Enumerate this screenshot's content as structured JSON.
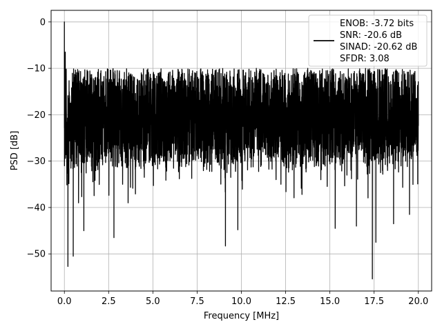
{
  "chart_data": {
    "type": "line",
    "title": "",
    "xlabel": "Frequency [MHz]",
    "ylabel": "PSD [dB]",
    "xlim": [
      -0.75,
      20.75
    ],
    "ylim": [
      -58,
      2.5
    ],
    "xticks": [
      0.0,
      2.5,
      5.0,
      7.5,
      10.0,
      12.5,
      15.0,
      17.5,
      20.0
    ],
    "xtick_labels": [
      "0.0",
      "2.5",
      "5.0",
      "7.5",
      "10.0",
      "12.5",
      "15.0",
      "17.5",
      "20.0"
    ],
    "yticks": [
      0,
      -10,
      -20,
      -30,
      -40,
      -50
    ],
    "ytick_labels": [
      "0",
      "−10",
      "−20",
      "−30",
      "−40",
      "−50"
    ],
    "grid": true,
    "legend_position": "top-right",
    "series": [
      {
        "name": "ENOB: -3.72 bits\nSNR: -20.6 dB\nSINAD: -20.62 dB\nSFDR: 3.08",
        "color": "#000000",
        "description": "noise-like PSD fluctuating mostly between about -10 and -30 dB across 0-20 MHz",
        "x_range": [
          0,
          20
        ],
        "band_upper": -10,
        "band_lower": -30,
        "points": [
          [
            0.0,
            0.0
          ],
          [
            0.02,
            -21.5
          ],
          [
            0.05,
            -6.5
          ],
          [
            0.08,
            -15
          ],
          [
            0.12,
            -28
          ],
          [
            0.2,
            -52.7
          ],
          [
            0.3,
            -18
          ],
          [
            0.5,
            -50.5
          ],
          [
            0.55,
            -12
          ],
          [
            0.8,
            -39
          ],
          [
            1.1,
            -45
          ],
          [
            2.8,
            -46.5
          ],
          [
            3.6,
            -39
          ],
          [
            9.1,
            -48.3
          ],
          [
            9.8,
            -44.8
          ],
          [
            15.3,
            -44.5
          ],
          [
            16.5,
            -44.0
          ],
          [
            17.4,
            -55.4
          ],
          [
            17.6,
            -47.5
          ],
          [
            18.6,
            -43.5
          ],
          [
            19.5,
            -41.5
          ],
          [
            20.0,
            -20
          ]
        ]
      }
    ]
  }
}
